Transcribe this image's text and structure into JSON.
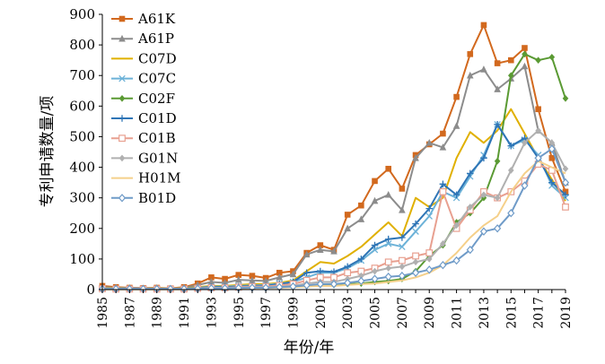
{
  "chart_data": {
    "type": "line",
    "xlabel": "年份/年",
    "ylabel": "专利申请数量/项",
    "ylim": [
      0,
      900
    ],
    "yticks": [
      0,
      100,
      200,
      300,
      400,
      500,
      600,
      700,
      800,
      900
    ],
    "x": [
      1985,
      1986,
      1987,
      1988,
      1989,
      1990,
      1991,
      1992,
      1993,
      1994,
      1995,
      1996,
      1997,
      1998,
      1999,
      2000,
      2001,
      2002,
      2003,
      2004,
      2005,
      2006,
      2007,
      2008,
      2009,
      2010,
      2011,
      2012,
      2013,
      2014,
      2015,
      2016,
      2017,
      2018,
      2019
    ],
    "xtick_labels": [
      "1985",
      "1987",
      "1989",
      "1991",
      "1993",
      "1995",
      "1997",
      "1999",
      "2001",
      "2003",
      "2005",
      "2007",
      "2009",
      "2011",
      "2013",
      "2015",
      "2017",
      "2019"
    ],
    "legend_position": "top-left",
    "series": [
      {
        "name": "A61K",
        "color": "#D2691E",
        "marker": "square",
        "values": [
          12,
          8,
          6,
          5,
          6,
          4,
          8,
          20,
          40,
          35,
          48,
          45,
          38,
          55,
          60,
          120,
          145,
          130,
          245,
          275,
          355,
          395,
          330,
          440,
          475,
          510,
          630,
          770,
          865,
          740,
          750,
          790,
          590,
          430,
          320
        ]
      },
      {
        "name": "A61P",
        "color": "#8C8C8C",
        "marker": "triangle",
        "values": [
          8,
          6,
          5,
          4,
          5,
          3,
          6,
          15,
          25,
          22,
          32,
          30,
          28,
          40,
          50,
          115,
          130,
          125,
          200,
          230,
          290,
          310,
          260,
          430,
          480,
          465,
          535,
          700,
          720,
          655,
          690,
          730,
          520,
          480,
          350
        ]
      },
      {
        "name": "C07D",
        "color": "#E0B000",
        "marker": "none",
        "values": [
          5,
          4,
          3,
          3,
          4,
          3,
          4,
          8,
          12,
          12,
          15,
          18,
          18,
          22,
          30,
          60,
          90,
          85,
          110,
          140,
          180,
          220,
          175,
          300,
          270,
          300,
          430,
          515,
          480,
          520,
          590,
          510,
          430,
          360,
          290
        ]
      },
      {
        "name": "C07C",
        "color": "#6CB2D8",
        "marker": "xmark",
        "values": [
          4,
          3,
          3,
          2,
          3,
          2,
          3,
          6,
          10,
          10,
          12,
          14,
          15,
          20,
          25,
          40,
          55,
          55,
          70,
          95,
          130,
          150,
          140,
          190,
          240,
          320,
          300,
          370,
          440,
          540,
          470,
          490,
          440,
          340,
          300
        ]
      },
      {
        "name": "C02F",
        "color": "#5A9A33",
        "marker": "diamond",
        "values": [
          2,
          2,
          2,
          2,
          2,
          2,
          2,
          3,
          4,
          4,
          5,
          6,
          6,
          8,
          10,
          12,
          15,
          15,
          18,
          20,
          25,
          28,
          35,
          60,
          110,
          145,
          220,
          250,
          300,
          420,
          700,
          770,
          750,
          760,
          625
        ]
      },
      {
        "name": "C01D",
        "color": "#2E75B6",
        "marker": "plus",
        "values": [
          3,
          3,
          3,
          2,
          3,
          2,
          3,
          5,
          8,
          8,
          10,
          12,
          12,
          18,
          25,
          55,
          60,
          58,
          75,
          100,
          145,
          165,
          170,
          215,
          265,
          345,
          310,
          380,
          430,
          540,
          470,
          495,
          430,
          350,
          310
        ]
      },
      {
        "name": "C01B",
        "color": "#E8A090",
        "marker": "square-open",
        "values": [
          3,
          2,
          2,
          2,
          2,
          2,
          2,
          4,
          6,
          6,
          8,
          10,
          10,
          14,
          18,
          30,
          40,
          40,
          55,
          60,
          70,
          90,
          95,
          110,
          120,
          320,
          200,
          260,
          320,
          300,
          320,
          355,
          410,
          390,
          270
        ]
      },
      {
        "name": "G01N",
        "color": "#B0B0B0",
        "marker": "diamond",
        "values": [
          2,
          2,
          2,
          2,
          2,
          2,
          2,
          3,
          5,
          5,
          6,
          8,
          8,
          10,
          12,
          20,
          25,
          25,
          35,
          45,
          60,
          70,
          75,
          90,
          100,
          150,
          210,
          270,
          310,
          300,
          390,
          480,
          520,
          480,
          395
        ]
      },
      {
        "name": "H01M",
        "color": "#F5D08A",
        "marker": "none",
        "values": [
          1,
          1,
          1,
          1,
          1,
          1,
          1,
          2,
          3,
          3,
          4,
          5,
          5,
          6,
          8,
          10,
          12,
          12,
          15,
          18,
          20,
          25,
          30,
          40,
          55,
          80,
          120,
          170,
          210,
          240,
          320,
          380,
          420,
          400,
          380
        ]
      },
      {
        "name": "B01D",
        "color": "#6F9BC8",
        "marker": "diamond-open",
        "values": [
          2,
          2,
          2,
          2,
          2,
          2,
          2,
          3,
          4,
          4,
          5,
          6,
          6,
          8,
          10,
          14,
          18,
          18,
          22,
          28,
          35,
          42,
          45,
          55,
          65,
          80,
          95,
          130,
          190,
          200,
          250,
          340,
          430,
          460,
          350
        ]
      }
    ]
  }
}
